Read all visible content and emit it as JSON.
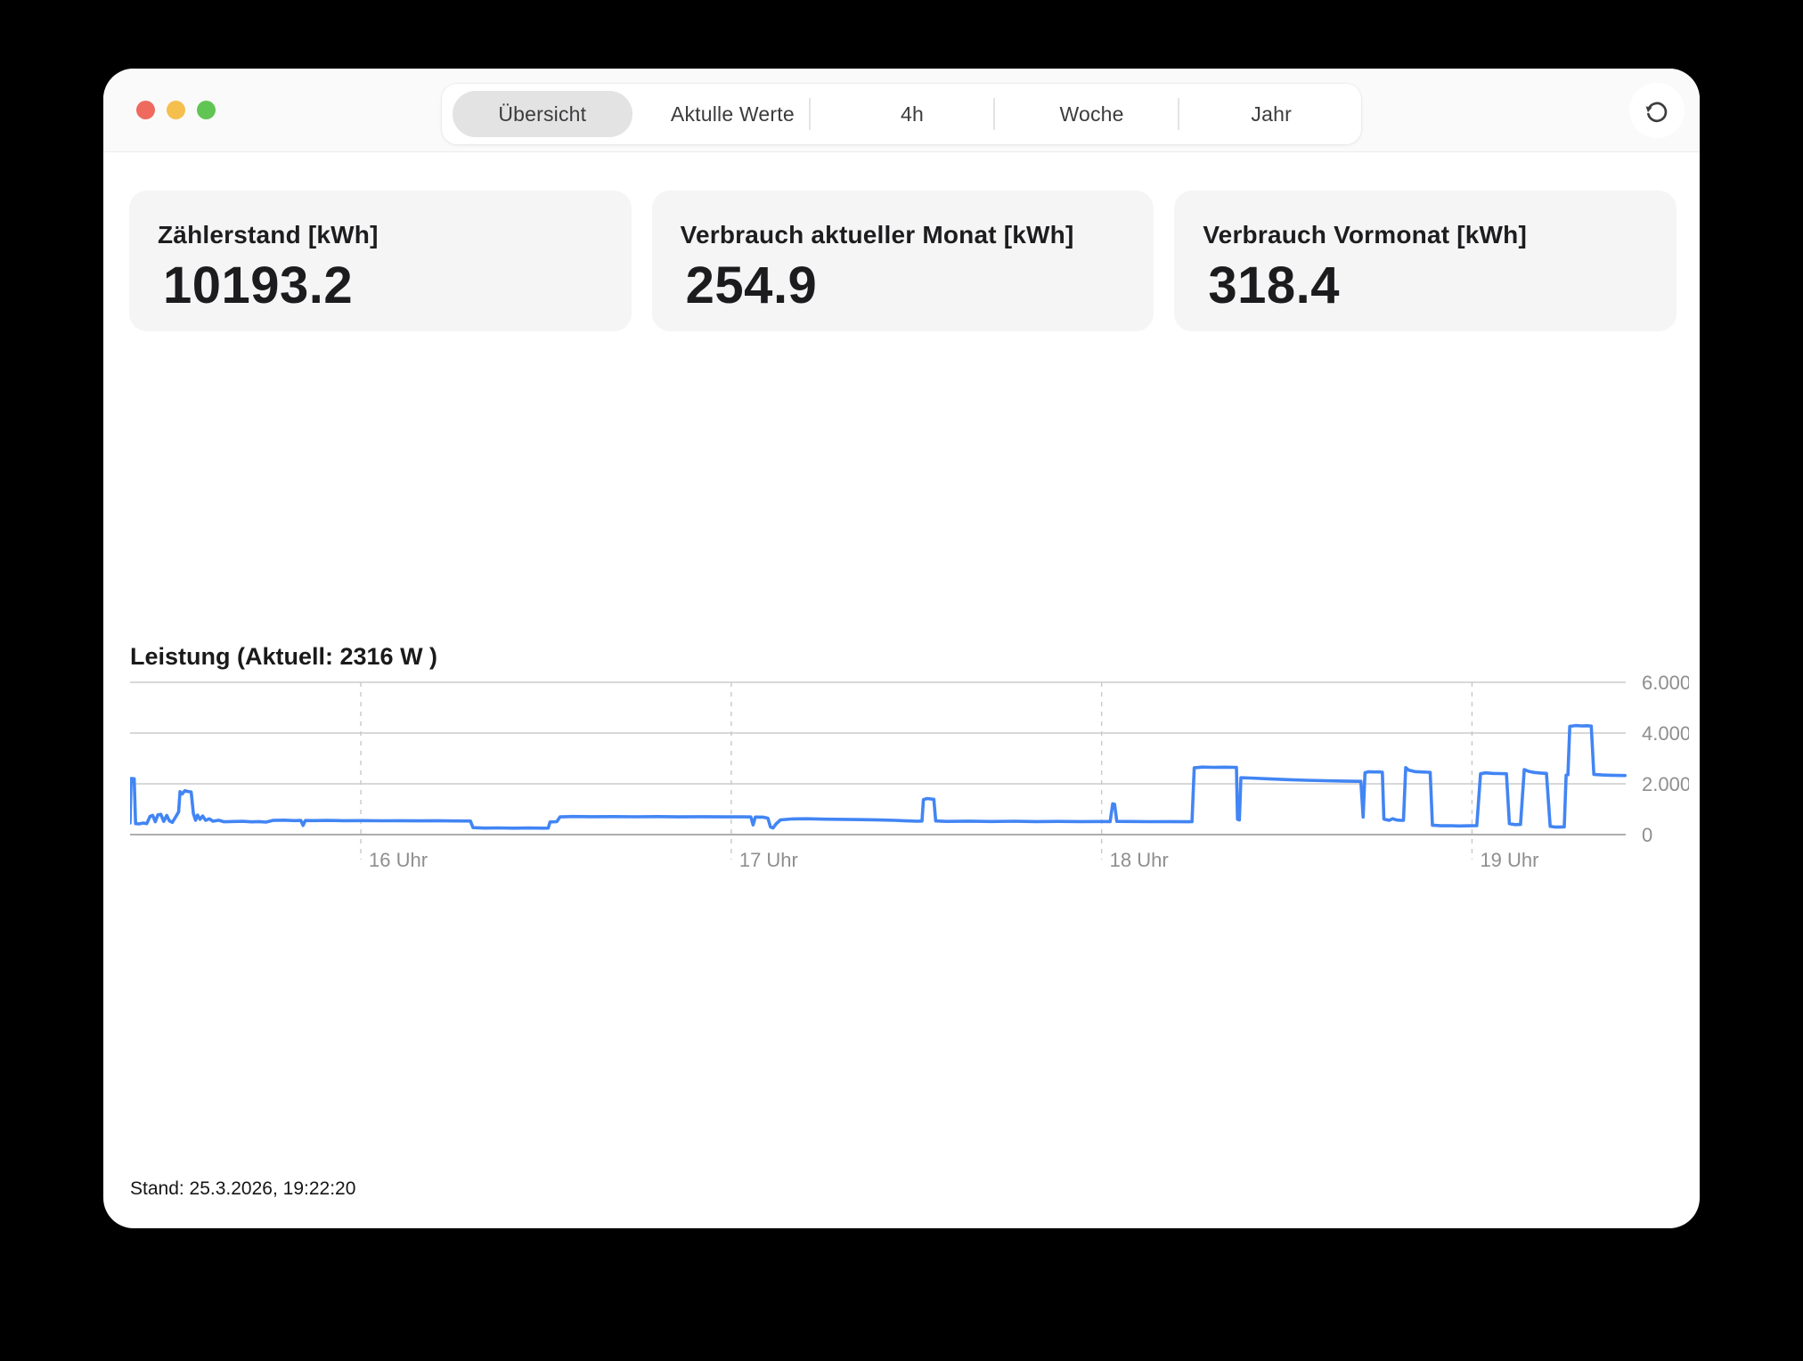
{
  "window": {
    "traffic_lights": {
      "red": "#ee6a5f",
      "yellow": "#f5bf4e",
      "green": "#61c554"
    }
  },
  "toolbar": {
    "tabs": [
      {
        "label": "Übersicht",
        "selected": true
      },
      {
        "label": "Aktulle Werte",
        "selected": false
      },
      {
        "label": "4h",
        "selected": false
      },
      {
        "label": "Woche",
        "selected": false
      },
      {
        "label": "Jahr",
        "selected": false
      }
    ],
    "refresh_icon": "refresh-counterclockwise-icon"
  },
  "stats": [
    {
      "title": "Zählerstand [kWh]",
      "value": "10193.2"
    },
    {
      "title": "Verbrauch aktueller Monat [kWh]",
      "value": "254.9"
    },
    {
      "title": "Verbrauch Vormonat [kWh]",
      "value": "318.4"
    }
  ],
  "chart": {
    "title": "Leistung (Aktuell: 2316 W )"
  },
  "chart_data": {
    "type": "line",
    "title": "Leistung (Aktuell: 2316 W )",
    "series_name": "Leistung [W]",
    "current_value_w": 2316,
    "color": "#4285f4",
    "x_unit": "hour_of_day",
    "xlim": [
      15.377,
      19.415
    ],
    "ylim": [
      0,
      6000
    ],
    "grid": {
      "horizontal": "solid",
      "vertical": "dashed"
    },
    "legend": "none",
    "yticks": [
      {
        "v": 0,
        "label": "0"
      },
      {
        "v": 2000,
        "label": "2.000"
      },
      {
        "v": 4000,
        "label": "4.000"
      },
      {
        "v": 6000,
        "label": "6.000"
      }
    ],
    "xticks": [
      {
        "v": 16,
        "label": "16 Uhr"
      },
      {
        "v": 17,
        "label": "17 Uhr"
      },
      {
        "v": 18,
        "label": "18 Uhr"
      },
      {
        "v": 19,
        "label": "19 Uhr"
      }
    ],
    "points": [
      [
        15.377,
        460
      ],
      [
        15.38,
        2210
      ],
      [
        15.388,
        2200
      ],
      [
        15.392,
        430
      ],
      [
        15.402,
        420
      ],
      [
        15.412,
        455
      ],
      [
        15.422,
        432
      ],
      [
        15.431,
        720
      ],
      [
        15.438,
        755
      ],
      [
        15.445,
        505
      ],
      [
        15.452,
        775
      ],
      [
        15.46,
        800
      ],
      [
        15.468,
        520
      ],
      [
        15.476,
        755
      ],
      [
        15.483,
        545
      ],
      [
        15.491,
        480
      ],
      [
        15.5,
        690
      ],
      [
        15.508,
        890
      ],
      [
        15.512,
        1690
      ],
      [
        15.518,
        1605
      ],
      [
        15.525,
        1730
      ],
      [
        15.533,
        1700
      ],
      [
        15.542,
        1680
      ],
      [
        15.548,
        820
      ],
      [
        15.554,
        565
      ],
      [
        15.559,
        770
      ],
      [
        15.566,
        605
      ],
      [
        15.573,
        735
      ],
      [
        15.581,
        560
      ],
      [
        15.591,
        620
      ],
      [
        15.601,
        525
      ],
      [
        15.616,
        565
      ],
      [
        15.631,
        505
      ],
      [
        15.655,
        515
      ],
      [
        15.682,
        522
      ],
      [
        15.705,
        502
      ],
      [
        15.726,
        512
      ],
      [
        15.744,
        492
      ],
      [
        15.762,
        558
      ],
      [
        15.792,
        568
      ],
      [
        15.822,
        552
      ],
      [
        15.838,
        558
      ],
      [
        15.844,
        362
      ],
      [
        15.85,
        556
      ],
      [
        15.875,
        552
      ],
      [
        15.905,
        558
      ],
      [
        15.952,
        548
      ],
      [
        16.005,
        552
      ],
      [
        16.055,
        544
      ],
      [
        16.105,
        549
      ],
      [
        16.155,
        541
      ],
      [
        16.205,
        546
      ],
      [
        16.255,
        536
      ],
      [
        16.296,
        532
      ],
      [
        16.303,
        272
      ],
      [
        16.335,
        256
      ],
      [
        16.372,
        262
      ],
      [
        16.412,
        252
      ],
      [
        16.452,
        258
      ],
      [
        16.492,
        253
      ],
      [
        16.506,
        256
      ],
      [
        16.511,
        498
      ],
      [
        16.529,
        508
      ],
      [
        16.538,
        700
      ],
      [
        16.572,
        712
      ],
      [
        16.622,
        704
      ],
      [
        16.682,
        710
      ],
      [
        16.742,
        702
      ],
      [
        16.802,
        708
      ],
      [
        16.862,
        700
      ],
      [
        16.922,
        706
      ],
      [
        16.982,
        700
      ],
      [
        17.032,
        698
      ],
      [
        17.053,
        696
      ],
      [
        17.059,
        382
      ],
      [
        17.065,
        690
      ],
      [
        17.086,
        688
      ],
      [
        17.099,
        645
      ],
      [
        17.106,
        302
      ],
      [
        17.113,
        258
      ],
      [
        17.121,
        420
      ],
      [
        17.133,
        580
      ],
      [
        17.162,
        615
      ],
      [
        17.202,
        625
      ],
      [
        17.252,
        606
      ],
      [
        17.302,
        600
      ],
      [
        17.352,
        588
      ],
      [
        17.402,
        575
      ],
      [
        17.442,
        560
      ],
      [
        17.472,
        542
      ],
      [
        17.502,
        526
      ],
      [
        17.515,
        532
      ],
      [
        17.519,
        1380
      ],
      [
        17.529,
        1420
      ],
      [
        17.541,
        1400
      ],
      [
        17.547,
        1388
      ],
      [
        17.552,
        536
      ],
      [
        17.582,
        521
      ],
      [
        17.642,
        529
      ],
      [
        17.702,
        516
      ],
      [
        17.762,
        525
      ],
      [
        17.822,
        513
      ],
      [
        17.882,
        521
      ],
      [
        17.942,
        511
      ],
      [
        18.002,
        516
      ],
      [
        18.023,
        512
      ],
      [
        18.03,
        1210
      ],
      [
        18.035,
        1192
      ],
      [
        18.041,
        520
      ],
      [
        18.082,
        516
      ],
      [
        18.132,
        508
      ],
      [
        18.182,
        514
      ],
      [
        18.232,
        507
      ],
      [
        18.244,
        509
      ],
      [
        18.25,
        2628
      ],
      [
        18.272,
        2660
      ],
      [
        18.302,
        2648
      ],
      [
        18.332,
        2657
      ],
      [
        18.359,
        2650
      ],
      [
        18.364,
        2648
      ],
      [
        18.367,
        605
      ],
      [
        18.372,
        578
      ],
      [
        18.376,
        2238
      ],
      [
        18.402,
        2228
      ],
      [
        18.452,
        2198
      ],
      [
        18.502,
        2165
      ],
      [
        18.552,
        2142
      ],
      [
        18.602,
        2122
      ],
      [
        18.652,
        2110
      ],
      [
        18.7,
        2100
      ],
      [
        18.706,
        692
      ],
      [
        18.711,
        2438
      ],
      [
        18.722,
        2478
      ],
      [
        18.736,
        2465
      ],
      [
        18.751,
        2470
      ],
      [
        18.758,
        2456
      ],
      [
        18.762,
        612
      ],
      [
        18.776,
        562
      ],
      [
        18.786,
        625
      ],
      [
        18.796,
        576
      ],
      [
        18.807,
        562
      ],
      [
        18.815,
        566
      ],
      [
        18.821,
        2638
      ],
      [
        18.829,
        2540
      ],
      [
        18.846,
        2482
      ],
      [
        18.863,
        2466
      ],
      [
        18.881,
        2456
      ],
      [
        18.887,
        2450
      ],
      [
        18.893,
        372
      ],
      [
        18.916,
        346
      ],
      [
        18.941,
        350
      ],
      [
        18.966,
        342
      ],
      [
        18.991,
        346
      ],
      [
        19.013,
        352
      ],
      [
        19.023,
        2396
      ],
      [
        19.036,
        2430
      ],
      [
        19.056,
        2412
      ],
      [
        19.076,
        2402
      ],
      [
        19.093,
        2396
      ],
      [
        19.101,
        432
      ],
      [
        19.116,
        394
      ],
      [
        19.131,
        400
      ],
      [
        19.141,
        2560
      ],
      [
        19.153,
        2490
      ],
      [
        19.169,
        2446
      ],
      [
        19.186,
        2426
      ],
      [
        19.201,
        2412
      ],
      [
        19.211,
        326
      ],
      [
        19.226,
        294
      ],
      [
        19.241,
        300
      ],
      [
        19.249,
        306
      ],
      [
        19.254,
        2342
      ],
      [
        19.259,
        2356
      ],
      [
        19.264,
        4262
      ],
      [
        19.279,
        4296
      ],
      [
        19.296,
        4280
      ],
      [
        19.311,
        4288
      ],
      [
        19.322,
        4272
      ],
      [
        19.329,
        2372
      ],
      [
        19.352,
        2346
      ],
      [
        19.376,
        2336
      ],
      [
        19.396,
        2330
      ],
      [
        19.413,
        2326
      ]
    ]
  },
  "footer": {
    "status": "Stand: 25.3.2026, 19:22:20"
  }
}
